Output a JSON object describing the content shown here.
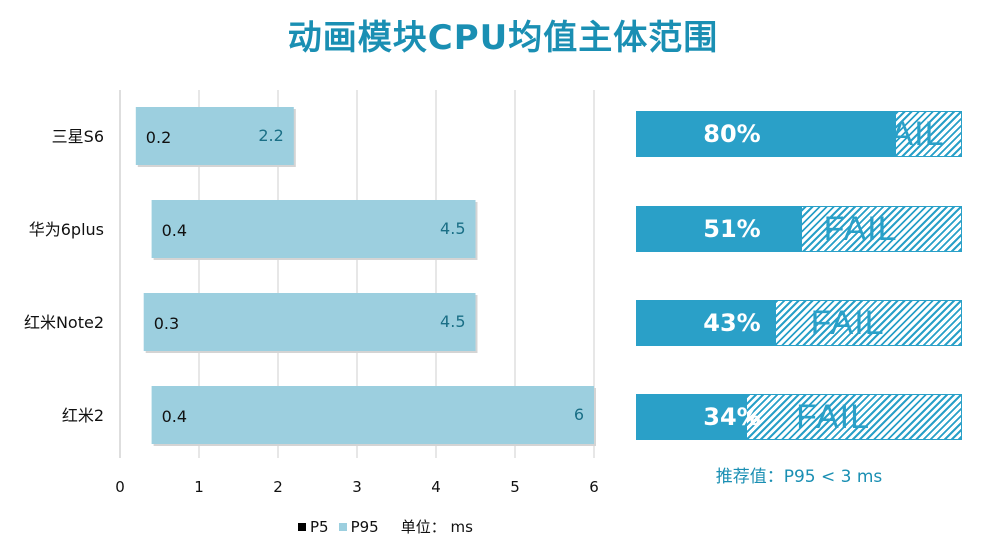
{
  "title": "动画模块CPU均值主体范围",
  "chart_data": {
    "type": "bar",
    "orientation": "horizontal",
    "title": "动画模块CPU均值主体范围",
    "categories": [
      "三星S6",
      "华为6plus",
      "红米Note2",
      "红米2"
    ],
    "series": [
      {
        "name": "P5",
        "values": [
          0.2,
          0.4,
          0.3,
          0.4
        ]
      },
      {
        "name": "P95",
        "values": [
          2.2,
          4.5,
          4.5,
          6
        ]
      }
    ],
    "xlim": [
      0,
      6
    ],
    "xticks": [
      "0",
      "1",
      "2",
      "3",
      "4",
      "5",
      "6"
    ],
    "grid": true,
    "legend_placement": "bottom",
    "unit": "单位： ms",
    "colors": {
      "P5": "#000000",
      "P95": "#9ccfdf",
      "label_p5": "#111111",
      "label_p95": "#1a6f86",
      "grid": "#cfcfcf"
    }
  },
  "legend": {
    "p5": "P5",
    "p95": "P95",
    "unit": "单位：  ms"
  },
  "progress": [
    {
      "device": "三星S6",
      "label": "80%",
      "value": 0.8,
      "status": "FAIL"
    },
    {
      "device": "华为6plus",
      "label": "51%",
      "value": 0.51,
      "status": "FAIL"
    },
    {
      "device": "红米Note2",
      "label": "43%",
      "value": 0.43,
      "status": "FAIL"
    },
    {
      "device": "红米2",
      "label": "34%",
      "value": 0.34,
      "status": "FAIL"
    }
  ],
  "recommend": "推荐值：P95 < 3 ms",
  "accent_color": "#2aa0c8"
}
